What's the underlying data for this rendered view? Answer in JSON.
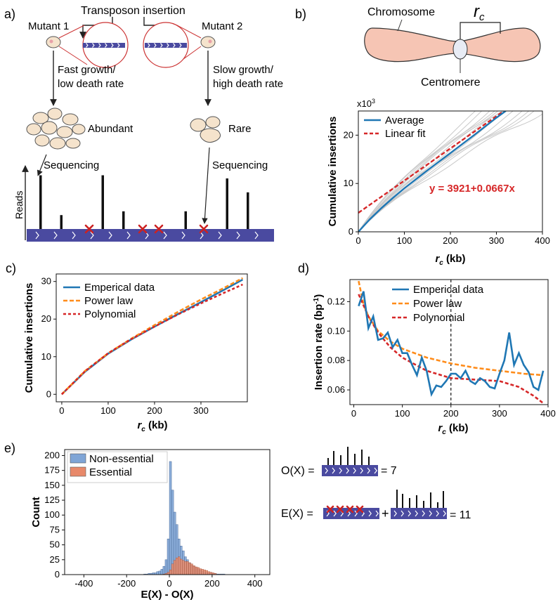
{
  "panels": {
    "a": "a)",
    "b": "b)",
    "c": "c)",
    "d": "d)",
    "e": "e)"
  },
  "panel_a": {
    "title": "Transposon insertion",
    "mutant1": "Mutant 1",
    "mutant2": "Mutant 2",
    "fast_line1": "Fast growth/",
    "fast_line2": "low death rate",
    "slow_line1": "Slow growth/",
    "slow_line2": "high death rate",
    "abundant": "Abundant",
    "rare": "Rare",
    "sequencing_left": "Sequencing",
    "sequencing_right": "Sequencing",
    "reads": "Reads",
    "read_heights": [
      0.85,
      0.22,
      0.0,
      0.85,
      0.28,
      0.0,
      0.0,
      0.28,
      0.0,
      0.8,
      0.58
    ],
    "colors": {
      "genome": "#4a4aa0",
      "cross": "#cc2222",
      "cell": "#f5e3cc"
    }
  },
  "panel_b": {
    "chromosome": "Chromosome",
    "centromere": "Centromere",
    "rc": "r",
    "rc_sub": "c",
    "colors": {
      "chromosome": "#f6c5b4"
    }
  },
  "chart_data": [
    {
      "id": "b",
      "type": "line",
      "xlabel": "r",
      "xlabel_sub": "c",
      "xlabel_unit": "(kb)",
      "ylabel": "Cumulative insertions",
      "multiplier": "x10",
      "multiplier_exp": "3",
      "xlim": [
        0,
        400
      ],
      "ylim": [
        0,
        25
      ],
      "xticks": [
        "0",
        "100",
        "200",
        "300",
        "400"
      ],
      "yticks": [
        "0",
        "10",
        "20"
      ],
      "legend": [
        "Average",
        "Linear fit"
      ],
      "equation": "y = 3921+0.0667x",
      "average": {
        "x": [
          0,
          25,
          50,
          75,
          100,
          150,
          200,
          250,
          300,
          320
        ],
        "y": [
          0,
          2.6,
          4.9,
          7.0,
          9.0,
          12.7,
          16.3,
          19.9,
          23.6,
          25
        ]
      },
      "linear_fit": {
        "intercept": 3.921,
        "slope": 0.0667
      },
      "colors": {
        "average": "#1f77b4",
        "fit": "#d62728",
        "samples": "#c9c9c9"
      }
    },
    {
      "id": "c",
      "type": "line",
      "xlabel": "r",
      "xlabel_sub": "c",
      "xlabel_unit": "(kb)",
      "ylabel": "Cumulative insertions",
      "xlim": [
        0,
        400
      ],
      "ylim": [
        0,
        32
      ],
      "xticks": [
        "0",
        "100",
        "200",
        "300"
      ],
      "yticks": [
        "0",
        "10",
        "20",
        "30"
      ],
      "series": [
        {
          "name": "Emperical data",
          "x": [
            0,
            50,
            100,
            150,
            200,
            250,
            300,
            350,
            390
          ],
          "y": [
            0,
            6.0,
            10.8,
            14.6,
            18.0,
            21.3,
            24.5,
            27.8,
            30.5
          ]
        },
        {
          "name": "Power law",
          "x": [
            0,
            50,
            100,
            150,
            200,
            250,
            300,
            350,
            390
          ],
          "y": [
            0,
            6.2,
            10.9,
            14.8,
            18.4,
            21.9,
            25.2,
            28.3,
            30.9
          ]
        },
        {
          "name": "Polynomial",
          "x": [
            0,
            50,
            100,
            150,
            200,
            250,
            300,
            350,
            390
          ],
          "y": [
            0,
            6.1,
            10.9,
            14.7,
            18.0,
            21.2,
            24.2,
            27.0,
            29.2
          ]
        }
      ],
      "colors": [
        "#1f77b4",
        "#ff8c1a",
        "#d62728"
      ]
    },
    {
      "id": "d",
      "type": "line",
      "xlabel": "r",
      "xlabel_sub": "c",
      "xlabel_unit": "(kb)",
      "ylabel": "Insertion rate (bp",
      "ylabel_sup": "-1",
      "ylabel_end": ")",
      "xlim": [
        0,
        400
      ],
      "ylim": [
        0.05,
        0.135
      ],
      "xticks": [
        "0",
        "100",
        "200",
        "300",
        "400"
      ],
      "yticks": [
        "0.06",
        "0.08",
        "0.10",
        "0.12"
      ],
      "vline": 200,
      "series": [
        {
          "name": "Emperical data",
          "x": [
            10,
            20,
            30,
            40,
            50,
            60,
            70,
            80,
            90,
            100,
            110,
            120,
            130,
            140,
            150,
            160,
            170,
            180,
            190,
            200,
            210,
            220,
            230,
            240,
            250,
            260,
            270,
            280,
            290,
            300,
            310,
            320,
            330,
            340,
            350,
            360,
            370,
            380,
            390
          ],
          "y": [
            0.117,
            0.127,
            0.102,
            0.11,
            0.094,
            0.095,
            0.099,
            0.089,
            0.094,
            0.085,
            0.085,
            0.077,
            0.07,
            0.082,
            0.073,
            0.057,
            0.063,
            0.062,
            0.066,
            0.071,
            0.071,
            0.068,
            0.073,
            0.066,
            0.064,
            0.068,
            0.066,
            0.062,
            0.061,
            0.071,
            0.08,
            0.099,
            0.077,
            0.085,
            0.077,
            0.072,
            0.062,
            0.06,
            0.073
          ]
        },
        {
          "name": "Power law",
          "x": [
            10,
            20,
            30,
            50,
            75,
            100,
            150,
            200,
            250,
            300,
            350,
            390
          ],
          "y": [
            0.134,
            0.118,
            0.11,
            0.1,
            0.093,
            0.088,
            0.082,
            0.078,
            0.075,
            0.073,
            0.071,
            0.07
          ]
        },
        {
          "name": "Polynomial",
          "x": [
            10,
            30,
            50,
            75,
            100,
            150,
            200,
            250,
            300,
            340,
            370,
            390
          ],
          "y": [
            0.125,
            0.11,
            0.099,
            0.089,
            0.082,
            0.073,
            0.068,
            0.067,
            0.066,
            0.062,
            0.056,
            0.051
          ]
        }
      ],
      "colors": [
        "#1f77b4",
        "#ff8c1a",
        "#d62728"
      ]
    },
    {
      "id": "e",
      "type": "bar",
      "xlabel": "E(X) - O(X)",
      "ylabel": "Count",
      "xlim": [
        -490,
        470
      ],
      "ylim": [
        0,
        210
      ],
      "xticks": [
        "-400",
        "-200",
        "0",
        "200",
        "400"
      ],
      "yticks": [
        "0",
        "25",
        "50",
        "75",
        "100",
        "125",
        "150",
        "175",
        "200"
      ],
      "bin_width": 10,
      "series": [
        {
          "name": "Non-essential",
          "bin_start": [
            -120,
            -110,
            -100,
            -90,
            -80,
            -70,
            -60,
            -50,
            -40,
            -30,
            -20,
            -10,
            0,
            10,
            20,
            30,
            40,
            50,
            60,
            70,
            80,
            90,
            100,
            110,
            120,
            130,
            140,
            150,
            160,
            170,
            180,
            190,
            200,
            210,
            220,
            230,
            240,
            250
          ],
          "values": [
            1,
            1,
            2,
            2,
            3,
            3,
            5,
            6,
            9,
            14,
            25,
            60,
            190,
            142,
            105,
            84,
            60,
            48,
            40,
            30,
            25,
            20,
            16,
            14,
            12,
            10,
            8,
            6,
            5,
            4,
            3,
            3,
            2,
            2,
            1,
            1,
            1,
            1
          ]
        },
        {
          "name": "Essential",
          "bin_start": [
            -30,
            -20,
            -10,
            0,
            10,
            20,
            30,
            40,
            50,
            60,
            70,
            80,
            90,
            100,
            110,
            120,
            130,
            140,
            150,
            160,
            170,
            180,
            190,
            200,
            210
          ],
          "values": [
            1,
            2,
            4,
            8,
            18,
            24,
            28,
            30,
            26,
            24,
            22,
            22,
            20,
            18,
            15,
            13,
            12,
            10,
            9,
            8,
            7,
            5,
            4,
            3,
            2
          ]
        }
      ],
      "colors": [
        "#7fa5d6",
        "#e8896a"
      ]
    }
  ],
  "panel_e_schematic": {
    "ox": "O(X) =",
    "ox_value": "= 7",
    "ex": "E(X) =",
    "plus": "+",
    "ex_value": "= 11"
  }
}
